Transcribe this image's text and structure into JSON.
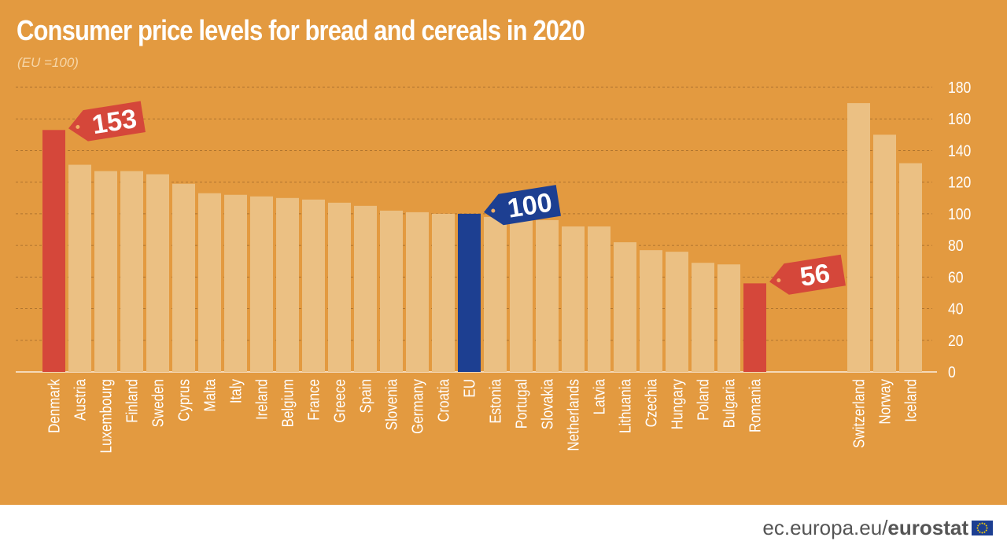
{
  "title": "Consumer price levels for bread and cereals in 2020",
  "subtitle": "(EU =100)",
  "footer": {
    "domain": "ec.europa.eu/",
    "brand": "eurostat"
  },
  "colors": {
    "background": "#e39a40",
    "bar": "#ebc083",
    "highlight_red": "#d5473a",
    "highlight_blue": "#1d3f91",
    "text": "#ffffff"
  },
  "chart_data": {
    "type": "bar",
    "ylim": [
      0,
      180
    ],
    "yticks": [
      0,
      20,
      40,
      60,
      80,
      100,
      120,
      140,
      160,
      180
    ],
    "grid": true,
    "categories": [
      "Denmark",
      "Austria",
      "Luxembourg",
      "Finland",
      "Sweden",
      "Cyprus",
      "Malta",
      "Italy",
      "Ireland",
      "Belgium",
      "France",
      "Greece",
      "Spain",
      "Slovenia",
      "Germany",
      "Croatia",
      "EU",
      "Estonia",
      "Portugal",
      "Slovakia",
      "Netherlands",
      "Latvia",
      "Lithuania",
      "Czechia",
      "Hungary",
      "Poland",
      "Bulgaria",
      "Romania",
      "Switzerland",
      "Norway",
      "Iceland"
    ],
    "values": [
      153,
      131,
      127,
      127,
      125,
      119,
      113,
      112,
      111,
      110,
      109,
      107,
      105,
      102,
      101,
      100,
      100,
      98,
      97,
      96,
      92,
      92,
      82,
      77,
      76,
      69,
      68,
      56,
      170,
      150,
      132
    ],
    "highlight": {
      "Denmark": "red",
      "EU": "blue",
      "Romania": "red"
    },
    "callouts": [
      {
        "category": "Denmark",
        "label": "153",
        "color": "red"
      },
      {
        "category": "EU",
        "label": "100",
        "color": "blue"
      },
      {
        "category": "Romania",
        "label": "56",
        "color": "red"
      }
    ]
  }
}
